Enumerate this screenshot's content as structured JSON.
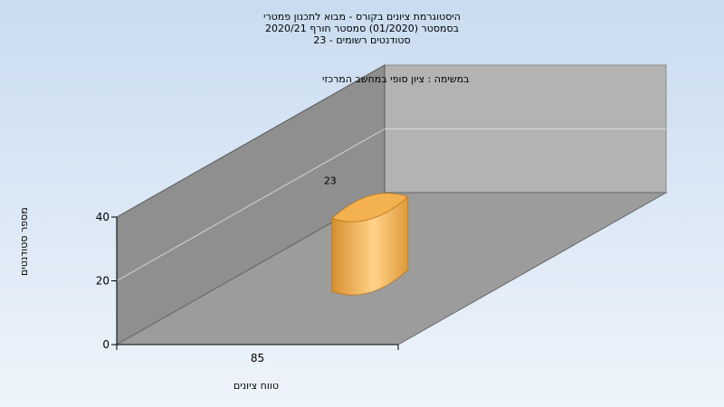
{
  "title_lines": [
    "היסטוגרמת ציונים בקורס - מבוא לתכנון פמטרי",
    "בסמסטר  (01/2020)  סמסטר חורף  2020/21",
    "סטודנטים רשומים - 23"
  ],
  "subtitle": "במשימה : ציון סופי במחשב המרכזי",
  "chart_data": {
    "type": "bar",
    "categories": [
      "85"
    ],
    "values": [
      23
    ],
    "data_labels": [
      "23"
    ],
    "xlabel": "טווח ציונים",
    "ylabel": "מספר סטודנטים",
    "ylim": [
      0,
      40
    ],
    "yticks": [
      "0",
      "20",
      "40"
    ],
    "grid": true,
    "three_d": true,
    "bar_color": "#f3b150"
  }
}
